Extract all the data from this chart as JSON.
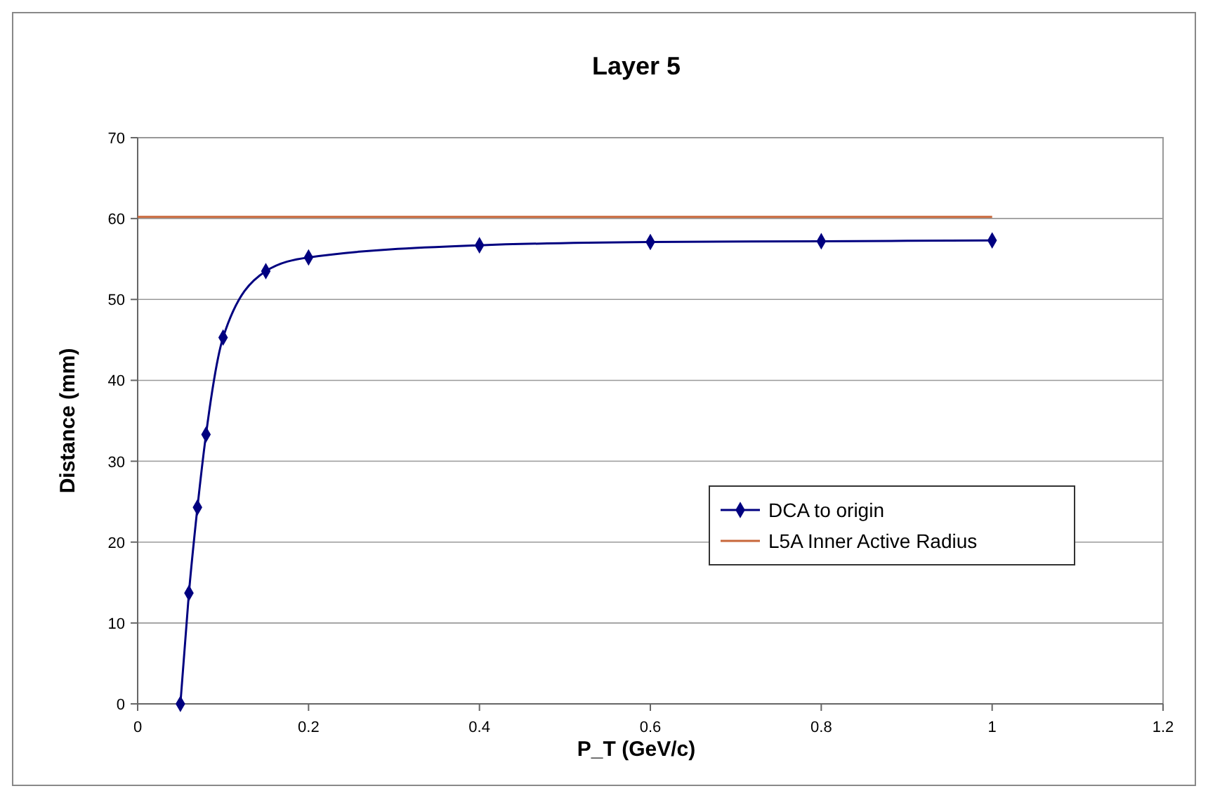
{
  "chart_data": {
    "type": "line",
    "title": "Layer 5",
    "xlabel": "P_T (GeV/c)",
    "ylabel": "Distance (mm)",
    "xlim": [
      0,
      1.2
    ],
    "xticks": [
      0,
      0.2,
      0.4,
      0.6,
      0.8,
      1,
      1.2
    ],
    "ylim": [
      0,
      70
    ],
    "yticks": [
      0,
      10,
      20,
      30,
      40,
      50,
      60,
      70
    ],
    "grid": "y",
    "legend": "right",
    "series": [
      {
        "name": "DCA to origin",
        "color": "#000080",
        "marker": "diamond",
        "x": [
          0.05,
          0.06,
          0.07,
          0.08,
          0.1,
          0.15,
          0.2,
          0.4,
          0.6,
          0.8,
          1
        ],
        "values": [
          0,
          13.7,
          24.3,
          33.3,
          45.3,
          53.5,
          55.2,
          56.7,
          57.1,
          57.2,
          57.3
        ]
      },
      {
        "name": "L5A Inner Active Radius",
        "color": "#c8673a",
        "marker": "none",
        "x": [
          0,
          1
        ],
        "values": [
          60.2,
          60.2
        ]
      }
    ]
  }
}
